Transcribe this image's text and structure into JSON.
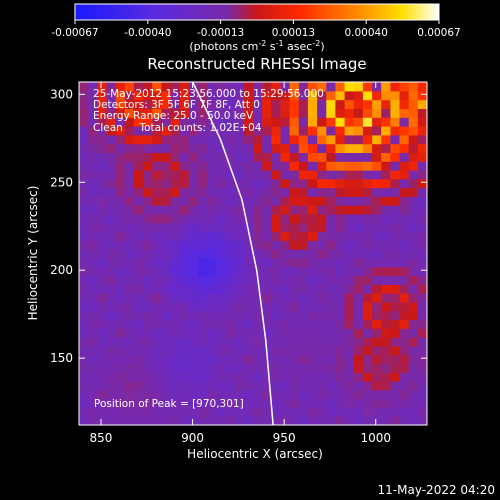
{
  "chart_data": {
    "type": "heatmap",
    "title": "Reconstructed RHESSI Image",
    "xlabel": "Heliocentric X (arcsec)",
    "ylabel": "Heliocentric Y (arcsec)",
    "xlim": [
      838,
      1028
    ],
    "ylim": [
      112,
      307
    ],
    "xticks": [
      850,
      900,
      950,
      1000
    ],
    "yticks": [
      150,
      200,
      250,
      300
    ],
    "colorbar": {
      "ticks": [
        "-0.00067",
        "-0.00040",
        "-0.00013",
        "0.00013",
        "0.00040",
        "0.00067"
      ],
      "unit_parts": [
        "(photons cm",
        "-2",
        " s",
        "-1",
        " asec",
        "-2",
        ")"
      ],
      "range": [
        -0.00067,
        0.00067
      ],
      "colors": [
        "#1a1aff",
        "#6c2ad0",
        "#ff0000",
        "#ffdd00",
        "#ffffff"
      ]
    },
    "annotations": [
      "25-May-2012 15:23:56.000 to 15:29:56.000",
      "Detectors: 3F 5F 6F 7F 8F, Att 0",
      "Energy Range: 25.0 - 50.0 keV",
      "Clean     Total counts: 1.02E+04"
    ],
    "peak_label": "Position of Peak = [970,301]",
    "peak": [
      970,
      301
    ],
    "limb_curve": [
      [
        900,
        307
      ],
      [
        915,
        275
      ],
      [
        927,
        240
      ],
      [
        935,
        200
      ],
      [
        940,
        160
      ],
      [
        944,
        112
      ]
    ],
    "hot_regions": [
      {
        "x": 985,
        "y": 290,
        "level": 0.95,
        "r": 35
      },
      {
        "x": 1015,
        "y": 300,
        "level": 0.9,
        "r": 20
      },
      {
        "x": 870,
        "y": 295,
        "level": 0.75,
        "r": 20
      },
      {
        "x": 880,
        "y": 250,
        "level": 0.55,
        "r": 18
      },
      {
        "x": 955,
        "y": 225,
        "level": 0.6,
        "r": 15
      },
      {
        "x": 1005,
        "y": 175,
        "level": 0.6,
        "r": 18
      },
      {
        "x": 1000,
        "y": 145,
        "level": 0.55,
        "r": 16
      },
      {
        "x": 865,
        "y": 130,
        "level": 0.45,
        "r": 14
      },
      {
        "x": 920,
        "y": 190,
        "level": 0.4,
        "r": 12
      },
      {
        "x": 960,
        "y": 150,
        "level": 0.4,
        "r": 12
      }
    ],
    "cold_regions": [
      {
        "x": 895,
        "y": 145,
        "level": 0.3,
        "r": 18
      },
      {
        "x": 905,
        "y": 200,
        "level": 0.15,
        "r": 20
      }
    ]
  },
  "footer": {
    "timestamp": "11-May-2022 04:20"
  }
}
